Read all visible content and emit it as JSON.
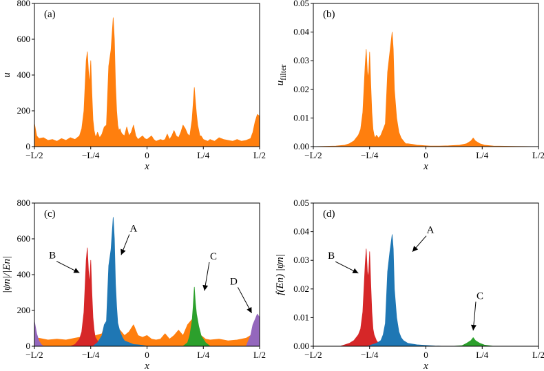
{
  "chart_data": [
    {
      "type": "area",
      "panel_label": "(a)",
      "xlabel": "x",
      "ylabel": "u",
      "ylabel_sub": "",
      "ylim": [
        0,
        800
      ],
      "yticks": [
        "0",
        "200",
        "400",
        "600",
        "800"
      ],
      "xlim": [
        -0.5,
        0.5
      ],
      "xticks": [
        "−L/2",
        "−L/4",
        "0",
        "L/4",
        "L/2"
      ],
      "series": [
        {
          "color": "#ff7f0e",
          "x": [
            -0.5,
            -0.49,
            -0.48,
            -0.46,
            -0.44,
            -0.42,
            -0.4,
            -0.38,
            -0.36,
            -0.34,
            -0.32,
            -0.3,
            -0.29,
            -0.28,
            -0.27,
            -0.265,
            -0.26,
            -0.255,
            -0.25,
            -0.245,
            -0.24,
            -0.235,
            -0.23,
            -0.225,
            -0.22,
            -0.21,
            -0.2,
            -0.19,
            -0.18,
            -0.17,
            -0.16,
            -0.15,
            -0.145,
            -0.14,
            -0.135,
            -0.13,
            -0.125,
            -0.12,
            -0.115,
            -0.11,
            -0.1,
            -0.09,
            -0.08,
            -0.07,
            -0.06,
            -0.05,
            -0.04,
            -0.03,
            -0.02,
            -0.01,
            0.0,
            0.01,
            0.02,
            0.03,
            0.04,
            0.05,
            0.06,
            0.07,
            0.08,
            0.09,
            0.1,
            0.11,
            0.12,
            0.13,
            0.14,
            0.15,
            0.16,
            0.17,
            0.18,
            0.19,
            0.2,
            0.21,
            0.215,
            0.22,
            0.225,
            0.23,
            0.235,
            0.24,
            0.25,
            0.26,
            0.27,
            0.28,
            0.3,
            0.32,
            0.34,
            0.36,
            0.38,
            0.4,
            0.42,
            0.44,
            0.46,
            0.47,
            0.48,
            0.49,
            0.5
          ],
          "y": [
            130,
            60,
            45,
            50,
            35,
            40,
            30,
            45,
            35,
            50,
            40,
            60,
            100,
            200,
            480,
            530,
            420,
            350,
            480,
            300,
            150,
            90,
            60,
            60,
            80,
            50,
            70,
            110,
            120,
            450,
            540,
            720,
            600,
            350,
            200,
            120,
            90,
            100,
            80,
            70,
            60,
            110,
            60,
            80,
            120,
            60,
            40,
            50,
            60,
            45,
            40,
            50,
            60,
            40,
            30,
            35,
            40,
            35,
            40,
            70,
            40,
            60,
            90,
            60,
            50,
            80,
            120,
            100,
            70,
            60,
            150,
            330,
            250,
            180,
            120,
            90,
            60,
            60,
            40,
            35,
            30,
            40,
            30,
            50,
            40,
            35,
            30,
            40,
            30,
            35,
            45,
            80,
            140,
            180,
            170
          ]
        }
      ],
      "annotations": []
    },
    {
      "type": "area",
      "panel_label": "(b)",
      "xlabel": "x",
      "ylabel": "u",
      "ylabel_sub": "filter",
      "ylim": [
        0,
        0.05
      ],
      "yticks": [
        "0.00",
        "0.01",
        "0.02",
        "0.03",
        "0.04",
        "0.05"
      ],
      "xlim": [
        -0.5,
        0.5
      ],
      "xticks": [
        "−L/2",
        "−L/4",
        "0",
        "L/4",
        "L/2"
      ],
      "series": [
        {
          "color": "#ff7f0e",
          "x": [
            -0.5,
            -0.4,
            -0.36,
            -0.34,
            -0.32,
            -0.3,
            -0.29,
            -0.28,
            -0.27,
            -0.265,
            -0.26,
            -0.255,
            -0.25,
            -0.245,
            -0.24,
            -0.235,
            -0.23,
            -0.225,
            -0.22,
            -0.21,
            -0.2,
            -0.19,
            -0.18,
            -0.17,
            -0.16,
            -0.15,
            -0.145,
            -0.14,
            -0.13,
            -0.12,
            -0.11,
            -0.1,
            -0.09,
            -0.08,
            -0.06,
            -0.04,
            -0.02,
            0.0,
            0.02,
            0.06,
            0.1,
            0.15,
            0.18,
            0.2,
            0.21,
            0.215,
            0.22,
            0.23,
            0.24,
            0.26,
            0.3,
            0.4,
            0.5
          ],
          "y": [
            0,
            0.0002,
            0.0005,
            0.001,
            0.002,
            0.004,
            0.006,
            0.012,
            0.028,
            0.034,
            0.026,
            0.024,
            0.033,
            0.022,
            0.012,
            0.006,
            0.004,
            0.003,
            0.004,
            0.003,
            0.004,
            0.006,
            0.008,
            0.026,
            0.033,
            0.04,
            0.034,
            0.02,
            0.01,
            0.005,
            0.003,
            0.002,
            0.001,
            0.001,
            0.0008,
            0.0005,
            0.0004,
            0.0003,
            0.0002,
            0.0002,
            0.0003,
            0.0005,
            0.001,
            0.002,
            0.003,
            0.0025,
            0.002,
            0.0015,
            0.001,
            0.0005,
            0.0002,
            0.0001,
            0
          ]
        }
      ],
      "annotations": []
    },
    {
      "type": "area",
      "panel_label": "(c)",
      "xlabel": "x",
      "ylabel": "|ψn|/|En|",
      "ylabel_sub": "",
      "ylim": [
        0,
        800
      ],
      "yticks": [
        "0",
        "200",
        "400",
        "600",
        "800"
      ],
      "xlim": [
        -0.5,
        0.5
      ],
      "xticks": [
        "−L/2",
        "−L/4",
        "0",
        "L/4",
        "L/2"
      ],
      "series": [
        {
          "color": "#ff7f0e",
          "x": [
            -0.5,
            -0.48,
            -0.44,
            -0.4,
            -0.36,
            -0.32,
            -0.3,
            -0.28,
            -0.2,
            -0.19,
            -0.18,
            -0.17,
            -0.16,
            -0.15,
            -0.14,
            -0.12,
            -0.1,
            -0.08,
            -0.06,
            -0.04,
            -0.02,
            0.0,
            0.02,
            0.04,
            0.06,
            0.08,
            0.1,
            0.12,
            0.14,
            0.16,
            0.18,
            0.2,
            0.22,
            0.24,
            0.26,
            0.28,
            0.32,
            0.36,
            0.4,
            0.44,
            0.46,
            0.48,
            0.5
          ],
          "y": [
            40,
            45,
            35,
            40,
            35,
            45,
            50,
            40,
            70,
            110,
            120,
            80,
            60,
            50,
            60,
            90,
            60,
            80,
            120,
            60,
            50,
            60,
            40,
            35,
            40,
            70,
            40,
            60,
            90,
            60,
            120,
            150,
            80,
            60,
            40,
            35,
            40,
            30,
            35,
            45,
            60,
            50,
            40
          ]
        },
        {
          "color": "#d62728",
          "x": [
            -0.34,
            -0.32,
            -0.3,
            -0.29,
            -0.28,
            -0.27,
            -0.265,
            -0.26,
            -0.255,
            -0.25,
            -0.245,
            -0.24,
            -0.235,
            -0.23,
            -0.22,
            -0.21,
            -0.2
          ],
          "y": [
            0,
            10,
            40,
            80,
            190,
            480,
            550,
            420,
            350,
            480,
            300,
            160,
            90,
            50,
            30,
            10,
            0
          ]
        },
        {
          "color": "#1f77b4",
          "x": [
            -0.24,
            -0.22,
            -0.2,
            -0.19,
            -0.18,
            -0.17,
            -0.16,
            -0.15,
            -0.145,
            -0.14,
            -0.135,
            -0.13,
            -0.12,
            -0.11,
            -0.1,
            -0.08,
            -0.06,
            -0.04,
            -0.02,
            0.0
          ],
          "y": [
            0,
            20,
            60,
            120,
            140,
            450,
            540,
            720,
            600,
            350,
            220,
            130,
            80,
            50,
            30,
            20,
            10,
            8,
            5,
            0
          ]
        },
        {
          "color": "#2ca02c",
          "x": [
            0.16,
            0.18,
            0.19,
            0.2,
            0.205,
            0.21,
            0.215,
            0.22,
            0.23,
            0.24,
            0.26,
            0.28
          ],
          "y": [
            0,
            20,
            60,
            140,
            220,
            330,
            240,
            180,
            110,
            60,
            20,
            0
          ]
        },
        {
          "color": "#9467bd",
          "x": [
            -0.5,
            -0.49,
            -0.48,
            -0.47,
            -0.46,
            0.44,
            0.46,
            0.47,
            0.48,
            0.49,
            0.5
          ],
          "y": [
            140,
            70,
            30,
            10,
            0,
            0,
            60,
            120,
            150,
            180,
            160
          ]
        }
      ],
      "annotations": [
        {
          "text": "A",
          "tx": -0.06,
          "ty": 640,
          "ax": -0.115,
          "ay": 510
        },
        {
          "text": "B",
          "tx": -0.42,
          "ty": 490,
          "ax": -0.3,
          "ay": 410
        },
        {
          "text": "C",
          "tx": 0.295,
          "ty": 485,
          "ax": 0.255,
          "ay": 310
        },
        {
          "text": "D",
          "tx": 0.385,
          "ty": 345,
          "ax": 0.465,
          "ay": 185
        }
      ]
    },
    {
      "type": "area",
      "panel_label": "(d)",
      "xlabel": "x",
      "ylabel": "f(En) |ψn|",
      "ylabel_sub": "",
      "ylim": [
        0,
        0.05
      ],
      "yticks": [
        "0.00",
        "0.01",
        "0.02",
        "0.03",
        "0.04",
        "0.05"
      ],
      "xlim": [
        -0.5,
        0.5
      ],
      "xticks": [
        "−L/2",
        "−L/4",
        "0",
        "L/4",
        "L/2"
      ],
      "series": [
        {
          "color": "#d62728",
          "x": [
            -0.38,
            -0.36,
            -0.34,
            -0.32,
            -0.3,
            -0.29,
            -0.28,
            -0.27,
            -0.265,
            -0.26,
            -0.255,
            -0.25,
            -0.245,
            -0.24,
            -0.235,
            -0.23,
            -0.22,
            -0.21,
            -0.2,
            -0.18
          ],
          "y": [
            0,
            0.0005,
            0.001,
            0.002,
            0.004,
            0.006,
            0.012,
            0.028,
            0.034,
            0.026,
            0.024,
            0.033,
            0.022,
            0.012,
            0.006,
            0.004,
            0.002,
            0.001,
            0.0005,
            0
          ]
        },
        {
          "color": "#1f77b4",
          "x": [
            -0.26,
            -0.24,
            -0.22,
            -0.2,
            -0.19,
            -0.18,
            -0.17,
            -0.16,
            -0.15,
            -0.145,
            -0.14,
            -0.13,
            -0.12,
            -0.11,
            -0.1,
            -0.08,
            -0.04,
            0.0,
            0.04,
            0.08
          ],
          "y": [
            0,
            0.0005,
            0.001,
            0.002,
            0.004,
            0.008,
            0.026,
            0.033,
            0.039,
            0.034,
            0.02,
            0.01,
            0.005,
            0.003,
            0.002,
            0.001,
            0.0005,
            0.0003,
            0.0001,
            0
          ]
        },
        {
          "color": "#2ca02c",
          "x": [
            0.12,
            0.16,
            0.18,
            0.2,
            0.21,
            0.215,
            0.22,
            0.23,
            0.24,
            0.26,
            0.3
          ],
          "y": [
            0,
            0.0002,
            0.001,
            0.002,
            0.003,
            0.0025,
            0.002,
            0.0015,
            0.001,
            0.0004,
            0
          ]
        }
      ],
      "annotations": [
        {
          "text": "A",
          "tx": 0.02,
          "ty": 0.0395,
          "ax": -0.06,
          "ay": 0.033
        },
        {
          "text": "B",
          "tx": -0.42,
          "ty": 0.0305,
          "ax": -0.3,
          "ay": 0.0255
        },
        {
          "text": "C",
          "tx": 0.24,
          "ty": 0.0165,
          "ax": 0.21,
          "ay": 0.0055
        }
      ]
    }
  ]
}
